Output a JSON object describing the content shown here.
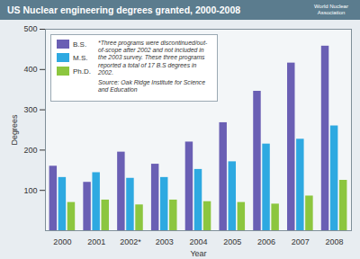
{
  "chart_data": {
    "type": "bar",
    "title": "US Nuclear engineering degrees granted, 2000-2008",
    "x_label": "Year",
    "y_label": "Degrees",
    "categories": [
      "2000",
      "2001",
      "2002*",
      "2003",
      "2004",
      "2005",
      "2006",
      "2007",
      "2008"
    ],
    "series": [
      {
        "name": "B.S.",
        "color": "#6a5fb4",
        "values": [
          160,
          120,
          195,
          165,
          220,
          268,
          346,
          416,
          458
        ]
      },
      {
        "name": "M.S.",
        "color": "#2ea9e1",
        "values": [
          132,
          144,
          130,
          132,
          152,
          171,
          215,
          227,
          260
        ]
      },
      {
        "name": "Ph.D.",
        "color": "#8cc63f",
        "values": [
          70,
          76,
          64,
          76,
          72,
          70,
          66,
          86,
          125
        ]
      }
    ],
    "annotations": [
      "*Three programs were discontinued/out-of-scope after 2002 and not included in the 2003 survey. These three programs reported a total of 17 B.S degrees in 2002.",
      "Source: Oak Ridge Institute for Science and Education",
      "World Nuclear Association"
    ],
    "ylim": [
      0,
      500
    ],
    "yticks": [
      100,
      200,
      300,
      400,
      500
    ],
    "grid": false,
    "legend": "top-left"
  }
}
